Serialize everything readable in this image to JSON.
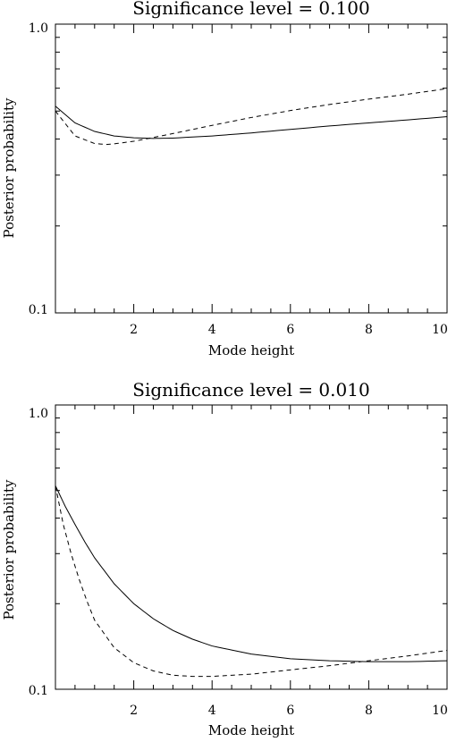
{
  "chart_data": [
    {
      "type": "line",
      "title": "Significance level = 0.100",
      "xlabel": "Mode height",
      "ylabel": "Posterior probability",
      "xlim": [
        0,
        10
      ],
      "ylim": [
        0.1,
        1.0
      ],
      "yscale": "log",
      "grid": false,
      "x_ticks": [
        2,
        4,
        6,
        8,
        10
      ],
      "x_tick_labels": [
        "2",
        "4",
        "6",
        "8",
        "10"
      ],
      "y_tick_labels": [
        "0.1",
        "1.0"
      ],
      "series": [
        {
          "style": "solid",
          "x": [
            0,
            0.5,
            1,
            1.5,
            2,
            2.5,
            3,
            4,
            5,
            6,
            7,
            8,
            9,
            10
          ],
          "y": [
            0.52,
            0.455,
            0.425,
            0.41,
            0.404,
            0.402,
            0.403,
            0.41,
            0.42,
            0.432,
            0.444,
            0.455,
            0.466,
            0.478
          ]
        },
        {
          "style": "dashed",
          "x": [
            0,
            0.5,
            1,
            1.3,
            1.5,
            2,
            2.5,
            3,
            4,
            5,
            6,
            7,
            8,
            9,
            10
          ],
          "y": [
            0.5,
            0.41,
            0.386,
            0.383,
            0.385,
            0.393,
            0.405,
            0.418,
            0.446,
            0.475,
            0.502,
            0.527,
            0.55,
            0.572,
            0.598
          ]
        }
      ]
    },
    {
      "type": "line",
      "title": "Significance level = 0.010",
      "xlabel": "Mode height",
      "ylabel": "Posterior probability",
      "xlim": [
        0,
        10
      ],
      "ylim": [
        0.1,
        1.0
      ],
      "yscale": "log",
      "grid": false,
      "x_ticks": [
        2,
        4,
        6,
        8,
        10
      ],
      "x_tick_labels": [
        "2",
        "4",
        "6",
        "8",
        "10"
      ],
      "y_tick_labels": [
        "0.1",
        "1.0"
      ],
      "series": [
        {
          "style": "solid",
          "x": [
            0,
            0.25,
            0.5,
            0.75,
            1,
            1.5,
            2,
            2.5,
            3,
            3.5,
            4,
            5,
            6,
            7,
            8,
            9,
            10
          ],
          "y": [
            0.52,
            0.44,
            0.38,
            0.33,
            0.29,
            0.235,
            0.2,
            0.177,
            0.161,
            0.15,
            0.142,
            0.133,
            0.128,
            0.126,
            0.125,
            0.125,
            0.126
          ]
        },
        {
          "style": "dashed",
          "x": [
            0,
            0.2,
            0.4,
            0.6,
            0.8,
            1,
            1.5,
            2,
            2.5,
            3,
            3.5,
            4,
            5,
            6,
            7,
            8,
            9,
            10
          ],
          "y": [
            0.52,
            0.38,
            0.3,
            0.245,
            0.205,
            0.175,
            0.14,
            0.124,
            0.116,
            0.112,
            0.111,
            0.111,
            0.113,
            0.117,
            0.121,
            0.126,
            0.131,
            0.137
          ]
        }
      ]
    }
  ]
}
